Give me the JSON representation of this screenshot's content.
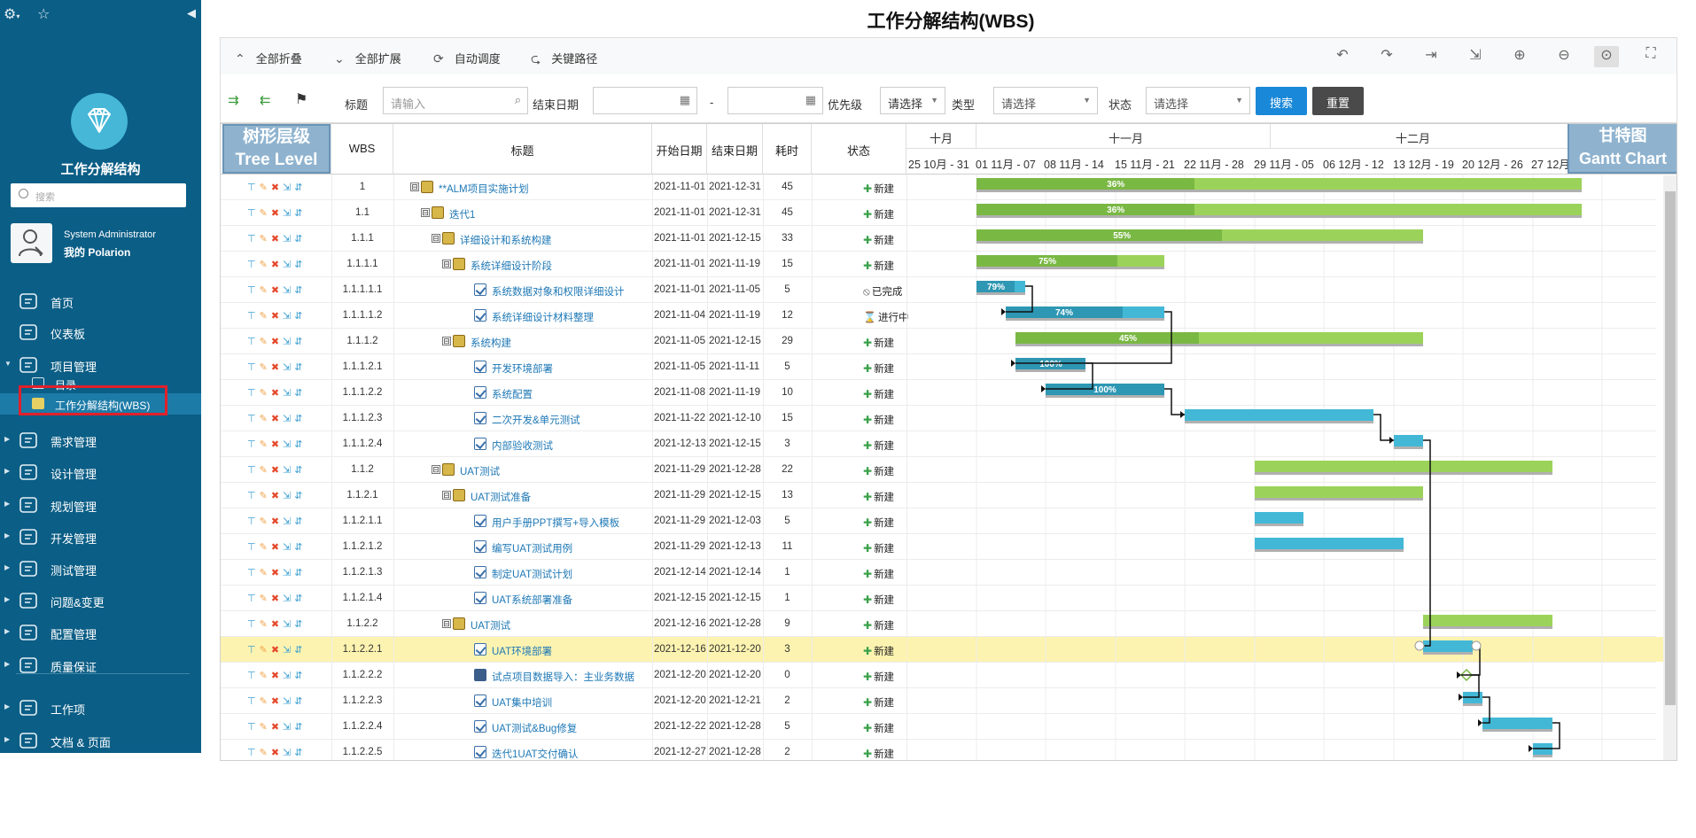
{
  "sidebar": {
    "collapse_icon": "collapse-left-icon",
    "title": "工作分解结构",
    "search_placeholder": "搜索",
    "user_name": "System Administrator",
    "user_work": "我的 Polarion",
    "nav": [
      {
        "label": "首页",
        "icon": "home-icon",
        "caret": ""
      },
      {
        "label": "仪表板",
        "icon": "dashboard-icon",
        "caret": ""
      },
      {
        "label": "项目管理",
        "icon": "project-icon",
        "caret": "▼"
      },
      {
        "label": "需求管理",
        "icon": "book-icon",
        "caret": "▶"
      },
      {
        "label": "设计管理",
        "icon": "design-icon",
        "caret": "▶"
      },
      {
        "label": "规划管理",
        "icon": "plan-icon",
        "caret": "▶"
      },
      {
        "label": "开发管理",
        "icon": "dev-icon",
        "caret": "▶"
      },
      {
        "label": "测试管理",
        "icon": "test-icon",
        "caret": "▶"
      },
      {
        "label": "问题&变更",
        "icon": "issue-icon",
        "caret": "▶"
      },
      {
        "label": "配置管理",
        "icon": "config-icon",
        "caret": "▶"
      },
      {
        "label": "质量保证",
        "icon": "quality-icon",
        "caret": "▶"
      },
      {
        "label": "工作项",
        "icon": "workitem-icon",
        "caret": "▶"
      },
      {
        "label": "文档 & 页面",
        "icon": "docs-icon",
        "caret": "▶"
      }
    ],
    "sub_items": [
      {
        "label": "目录",
        "icon": "catalog-icon"
      },
      {
        "label": "工作分解结构(WBS)",
        "icon": "wbs-chart-icon"
      }
    ]
  },
  "page": {
    "title": "工作分解结构(WBS)"
  },
  "toolbar": {
    "collapse_all": "全部折叠",
    "expand_all": "全部扩展",
    "auto_schedule": "自动调度",
    "critical_path": "关键路径"
  },
  "filters": {
    "title_label": "标题",
    "title_placeholder": "请输入",
    "end_date_label": "结束日期",
    "dash": "-",
    "priority_label": "优先级",
    "priority_value": "请选择",
    "type_label": "类型",
    "type_value": "请选择",
    "status_label": "状态",
    "status_value": "请选择",
    "search_button": "搜索",
    "reset_button": "重置",
    "search_color": "#1a88d8",
    "reset_color": "#4a4a4a"
  },
  "table": {
    "headers": {
      "tree_level": "",
      "wbs": "WBS",
      "title": "标题",
      "start": "开始日期",
      "end": "结束日期",
      "duration": "耗时",
      "status": "状态"
    },
    "annot_tree_cn": "树形层级",
    "annot_tree_en": "Tree Level",
    "annot_gantt_cn": "甘特图",
    "annot_gantt_en": "Gantt Chart",
    "rows": [
      {
        "wbs": "1",
        "title": "**ALM项目实施计划",
        "start": "2021-11-01",
        "end": "2021-12-31",
        "dur": "45",
        "status": "新建",
        "depth": 0,
        "type": "folder",
        "toggle": "⊟"
      },
      {
        "wbs": "1.1",
        "title": "迭代1",
        "start": "2021-11-01",
        "end": "2021-12-31",
        "dur": "45",
        "status": "新建",
        "depth": 1,
        "type": "folder",
        "toggle": "⊟"
      },
      {
        "wbs": "1.1.1",
        "title": "详细设计和系统构建",
        "start": "2021-11-01",
        "end": "2021-12-15",
        "dur": "33",
        "status": "新建",
        "depth": 2,
        "type": "folder",
        "toggle": "⊟"
      },
      {
        "wbs": "1.1.1.1",
        "title": "系统详细设计阶段",
        "start": "2021-11-01",
        "end": "2021-11-19",
        "dur": "15",
        "status": "新建",
        "depth": 3,
        "type": "folder",
        "toggle": "⊟"
      },
      {
        "wbs": "1.1.1.1.1",
        "title": "系统数据对象和权限详细设计",
        "start": "2021-11-01",
        "end": "2021-11-05",
        "dur": "5",
        "status": "已完成",
        "depth": 4,
        "type": "task",
        "toggle": ""
      },
      {
        "wbs": "1.1.1.1.2",
        "title": "系统详细设计材料整理",
        "start": "2021-11-04",
        "end": "2021-11-19",
        "dur": "12",
        "status": "进行中",
        "depth": 4,
        "type": "task",
        "toggle": ""
      },
      {
        "wbs": "1.1.1.2",
        "title": "系统构建",
        "start": "2021-11-05",
        "end": "2021-12-15",
        "dur": "29",
        "status": "新建",
        "depth": 3,
        "type": "folder",
        "toggle": "⊟"
      },
      {
        "wbs": "1.1.1.2.1",
        "title": "开发环境部署",
        "start": "2021-11-05",
        "end": "2021-11-11",
        "dur": "5",
        "status": "新建",
        "depth": 4,
        "type": "task",
        "toggle": ""
      },
      {
        "wbs": "1.1.1.2.2",
        "title": "系统配置",
        "start": "2021-11-08",
        "end": "2021-11-19",
        "dur": "10",
        "status": "新建",
        "depth": 4,
        "type": "task",
        "toggle": ""
      },
      {
        "wbs": "1.1.1.2.3",
        "title": "二次开发&单元测试",
        "start": "2021-11-22",
        "end": "2021-12-10",
        "dur": "15",
        "status": "新建",
        "depth": 4,
        "type": "task",
        "toggle": ""
      },
      {
        "wbs": "1.1.1.2.4",
        "title": "内部验收测试",
        "start": "2021-12-13",
        "end": "2021-12-15",
        "dur": "3",
        "status": "新建",
        "depth": 4,
        "type": "task",
        "toggle": ""
      },
      {
        "wbs": "1.1.2",
        "title": "UAT测试",
        "start": "2021-11-29",
        "end": "2021-12-28",
        "dur": "22",
        "status": "新建",
        "depth": 2,
        "type": "folder",
        "toggle": "⊟"
      },
      {
        "wbs": "1.1.2.1",
        "title": "UAT测试准备",
        "start": "2021-11-29",
        "end": "2021-12-15",
        "dur": "13",
        "status": "新建",
        "depth": 3,
        "type": "folder",
        "toggle": "⊟"
      },
      {
        "wbs": "1.1.2.1.1",
        "title": "用户手册PPT撰写+导入模板",
        "start": "2021-11-29",
        "end": "2021-12-03",
        "dur": "5",
        "status": "新建",
        "depth": 4,
        "type": "task",
        "toggle": ""
      },
      {
        "wbs": "1.1.2.1.2",
        "title": "编写UAT测试用例",
        "start": "2021-11-29",
        "end": "2021-12-13",
        "dur": "11",
        "status": "新建",
        "depth": 4,
        "type": "task",
        "toggle": ""
      },
      {
        "wbs": "1.1.2.1.3",
        "title": "制定UAT测试计划",
        "start": "2021-12-14",
        "end": "2021-12-14",
        "dur": "1",
        "status": "新建",
        "depth": 4,
        "type": "task",
        "toggle": ""
      },
      {
        "wbs": "1.1.2.1.4",
        "title": "UAT系统部署准备",
        "start": "2021-12-15",
        "end": "2021-12-15",
        "dur": "1",
        "status": "新建",
        "depth": 4,
        "type": "task",
        "toggle": ""
      },
      {
        "wbs": "1.1.2.2",
        "title": "UAT测试",
        "start": "2021-12-16",
        "end": "2021-12-28",
        "dur": "9",
        "status": "新建",
        "depth": 3,
        "type": "folder",
        "toggle": "⊟"
      },
      {
        "wbs": "1.1.2.2.1",
        "title": "UAT环境部署",
        "start": "2021-12-16",
        "end": "2021-12-20",
        "dur": "3",
        "status": "新建",
        "depth": 4,
        "type": "task",
        "toggle": "",
        "highlight": true
      },
      {
        "wbs": "1.1.2.2.2",
        "title": "试点项目数据导入：主业务数据",
        "start": "2021-12-20",
        "end": "2021-12-20",
        "dur": "0",
        "status": "新建",
        "depth": 4,
        "type": "milestone",
        "toggle": ""
      },
      {
        "wbs": "1.1.2.2.3",
        "title": "UAT集中培训",
        "start": "2021-12-20",
        "end": "2021-12-21",
        "dur": "2",
        "status": "新建",
        "depth": 4,
        "type": "task",
        "toggle": ""
      },
      {
        "wbs": "1.1.2.2.4",
        "title": "UAT测试&Bug修复",
        "start": "2021-12-22",
        "end": "2021-12-28",
        "dur": "5",
        "status": "新建",
        "depth": 4,
        "type": "task",
        "toggle": ""
      },
      {
        "wbs": "1.1.2.2.5",
        "title": "迭代1UAT交付确认",
        "start": "2021-12-27",
        "end": "2021-12-28",
        "dur": "2",
        "status": "新建",
        "depth": 4,
        "type": "task",
        "toggle": ""
      }
    ]
  },
  "timeline": {
    "months": [
      {
        "label": "十月"
      },
      {
        "label": "十一月"
      },
      {
        "label": "十二月"
      }
    ],
    "weeks": [
      "25 10月 - 31",
      "01 11月 - 07",
      "08 11月 - 14",
      "15 11月 - 21",
      "22 11月 - 28",
      "29 11月 - 05",
      "06 12月 - 12",
      "13 12月 - 19",
      "20 12月 - 26",
      "27 12月"
    ],
    "origin_date": "2021-10-25"
  },
  "gantt_bars": [
    {
      "row": 0,
      "start": "2021-11-01",
      "end": "2021-12-31",
      "progress": 36,
      "label": "36%",
      "kind": "summary"
    },
    {
      "row": 1,
      "start": "2021-11-01",
      "end": "2021-12-31",
      "progress": 36,
      "label": "36%",
      "kind": "summary"
    },
    {
      "row": 2,
      "start": "2021-11-01",
      "end": "2021-12-15",
      "progress": 55,
      "label": "55%",
      "kind": "summary"
    },
    {
      "row": 3,
      "start": "2021-11-01",
      "end": "2021-11-19",
      "progress": 75,
      "label": "75%",
      "kind": "summary"
    },
    {
      "row": 4,
      "start": "2021-11-01",
      "end": "2021-11-05",
      "progress": 79,
      "label": "79%",
      "kind": "task"
    },
    {
      "row": 5,
      "start": "2021-11-04",
      "end": "2021-11-19",
      "progress": 74,
      "label": "74%",
      "kind": "task"
    },
    {
      "row": 6,
      "start": "2021-11-05",
      "end": "2021-12-15",
      "progress": 45,
      "label": "45%",
      "kind": "summary"
    },
    {
      "row": 7,
      "start": "2021-11-05",
      "end": "2021-11-11",
      "progress": 100,
      "label": "100%",
      "kind": "task"
    },
    {
      "row": 8,
      "start": "2021-11-08",
      "end": "2021-11-19",
      "progress": 100,
      "label": "100%",
      "kind": "task"
    },
    {
      "row": 9,
      "start": "2021-11-22",
      "end": "2021-12-10",
      "progress": 0,
      "label": "",
      "kind": "task"
    },
    {
      "row": 10,
      "start": "2021-12-13",
      "end": "2021-12-15",
      "progress": 0,
      "label": "",
      "kind": "task"
    },
    {
      "row": 11,
      "start": "2021-11-29",
      "end": "2021-12-28",
      "progress": 0,
      "label": "",
      "kind": "summary"
    },
    {
      "row": 12,
      "start": "2021-11-29",
      "end": "2021-12-15",
      "progress": 0,
      "label": "",
      "kind": "summary"
    },
    {
      "row": 13,
      "start": "2021-11-29",
      "end": "2021-12-03",
      "progress": 0,
      "label": "",
      "kind": "task"
    },
    {
      "row": 14,
      "start": "2021-11-29",
      "end": "2021-12-13",
      "progress": 0,
      "label": "",
      "kind": "task"
    },
    {
      "row": 17,
      "start": "2021-12-16",
      "end": "2021-12-28",
      "progress": 0,
      "label": "",
      "kind": "summary"
    },
    {
      "row": 18,
      "start": "2021-12-16",
      "end": "2021-12-20",
      "progress": 0,
      "label": "",
      "kind": "task"
    },
    {
      "row": 19,
      "start": "2021-12-20",
      "end": "2021-12-20",
      "progress": 0,
      "label": "",
      "kind": "milestone"
    },
    {
      "row": 20,
      "start": "2021-12-20",
      "end": "2021-12-21",
      "progress": 0,
      "label": "",
      "kind": "task"
    },
    {
      "row": 21,
      "start": "2021-12-22",
      "end": "2021-12-28",
      "progress": 0,
      "label": "",
      "kind": "task"
    },
    {
      "row": 22,
      "start": "2021-12-27",
      "end": "2021-12-28",
      "progress": 0,
      "label": "",
      "kind": "task"
    }
  ],
  "gantt_links": [
    [
      4,
      5
    ],
    [
      5,
      7
    ],
    [
      7,
      8
    ],
    [
      8,
      9
    ],
    [
      9,
      10
    ],
    [
      10,
      18
    ],
    [
      18,
      19
    ],
    [
      19,
      20
    ],
    [
      20,
      21
    ],
    [
      21,
      22
    ]
  ],
  "colors": {
    "summary_fill": "#9bd35a",
    "summary_done": "#7ab844",
    "task_fill": "#43b8d6",
    "task_done": "#2e97b3",
    "shadow": "#b0b0b0",
    "highlight": "#fdf3b0"
  }
}
